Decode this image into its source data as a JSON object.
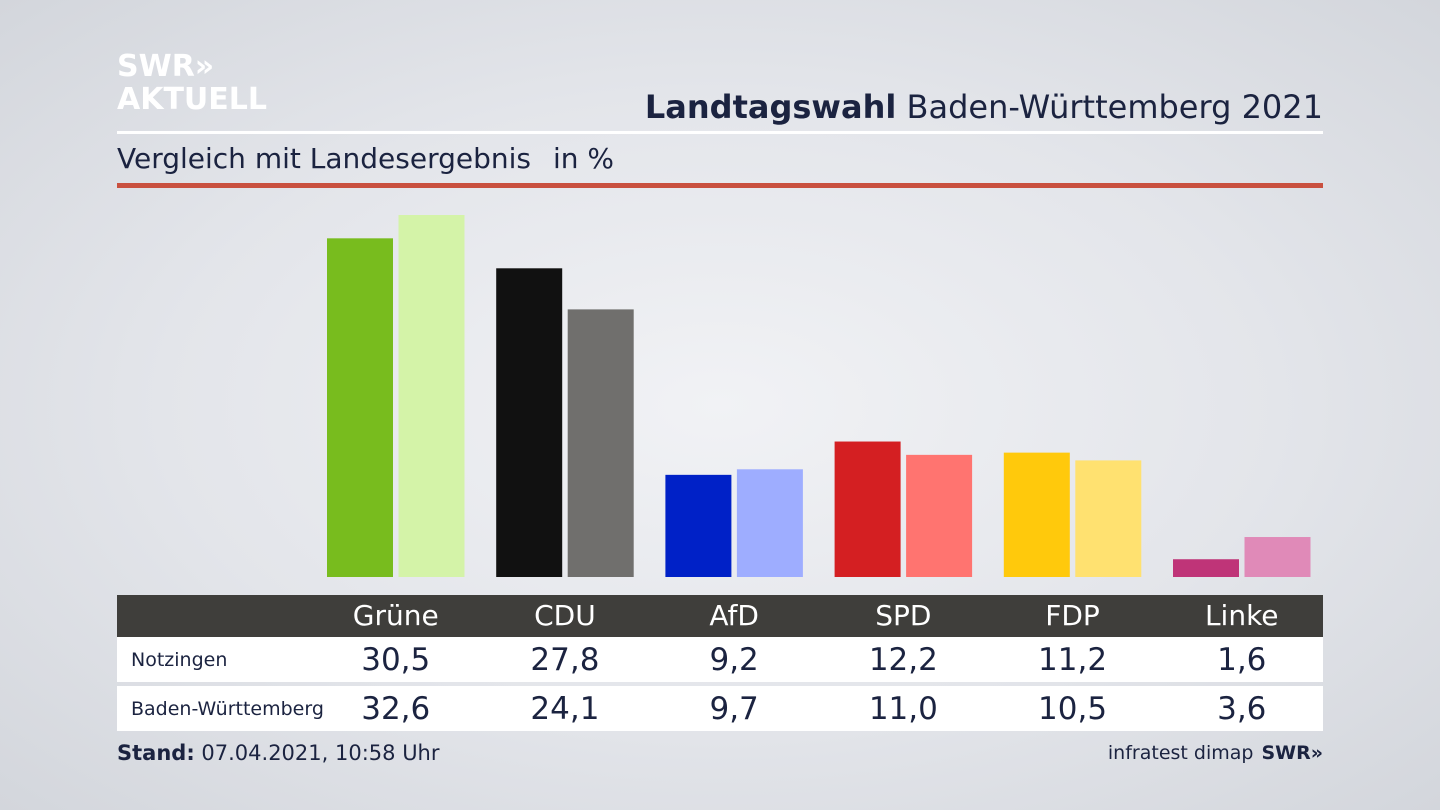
{
  "logo": {
    "line1": "SWR»",
    "line2": "AKTUELL"
  },
  "headline": {
    "bold": "Landtagswahl",
    "rest": "Baden-Württemberg 2021"
  },
  "subtitle": {
    "text": "Vergleich mit Landesergebnis",
    "unit": "in %"
  },
  "colors": {
    "local": [
      "#78bc1e",
      "#111111",
      "#0021c7",
      "#d41f22",
      "#ffc90c",
      "#bf3478"
    ],
    "state": [
      "#d4f3a8",
      "#706f6d",
      "#9eadff",
      "#ff7470",
      "#ffe170",
      "#e08ab8"
    ],
    "accent": "#c9503f"
  },
  "chart_data": {
    "type": "bar",
    "categories": [
      "Grüne",
      "CDU",
      "AfD",
      "SPD",
      "FDP",
      "Linke"
    ],
    "series": [
      {
        "name": "Notzingen",
        "values": [
          30.5,
          27.8,
          9.2,
          12.2,
          11.2,
          1.6
        ]
      },
      {
        "name": "Baden-Württemberg",
        "values": [
          32.6,
          24.1,
          9.7,
          11.0,
          10.5,
          3.6
        ]
      }
    ],
    "value_labels": [
      [
        "30,5",
        "27,8",
        "9,2",
        "12,2",
        "11,2",
        "1,6"
      ],
      [
        "32,6",
        "24,1",
        "9,7",
        "11,0",
        "10,5",
        "3,6"
      ]
    ],
    "ylabel": "in %",
    "ylim": [
      0,
      33
    ],
    "grid": false
  },
  "footer": {
    "label": "Stand:",
    "value": "07.04.2021, 10:58 Uhr"
  },
  "source": {
    "name": "infratest dimap",
    "brand": "SWR»"
  }
}
